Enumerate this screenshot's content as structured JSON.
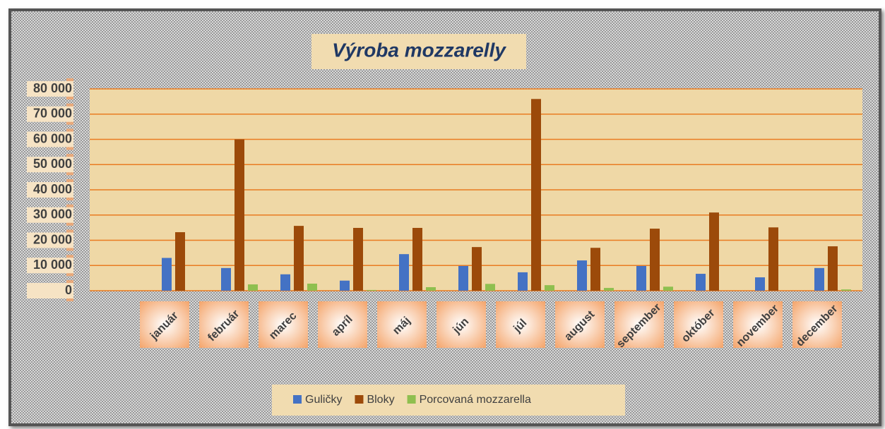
{
  "chart_data": {
    "type": "bar",
    "title": "Výroba mozzarelly",
    "categories": [
      "január",
      "február",
      "marec",
      "apríl",
      "máj",
      "jún",
      "júl",
      "august",
      "september",
      "október",
      "november",
      "december"
    ],
    "series": [
      {
        "name": "Guličky",
        "color": "#4472c4",
        "values": [
          13000,
          9000,
          6500,
          4000,
          14500,
          9800,
          7300,
          12000,
          9800,
          6700,
          5300,
          9000
        ]
      },
      {
        "name": "Bloky",
        "color": "#9c4a0a",
        "values": [
          23200,
          60000,
          25700,
          24900,
          24900,
          17300,
          76000,
          17000,
          24600,
          31000,
          25100,
          17600
        ]
      },
      {
        "name": "Porcovaná mozzarella",
        "color": "#8fbf4f",
        "values": [
          0,
          2500,
          2800,
          300,
          1400,
          2700,
          2200,
          1100,
          1600,
          0,
          0,
          500
        ]
      }
    ],
    "ylim": [
      0,
      80000
    ],
    "yticks": [
      0,
      {
        "value": 10000,
        "label": "10 000"
      },
      {
        "value": 20000,
        "label": "20 000"
      },
      {
        "value": 30000,
        "label": "30 000"
      },
      {
        "value": 40000,
        "label": "40 000"
      },
      {
        "value": 50000,
        "label": "50 000"
      },
      {
        "value": 60000,
        "label": "60 000"
      },
      {
        "value": 70000,
        "label": "70 000"
      },
      {
        "value": 80000,
        "label": "80 000"
      }
    ],
    "grid": true,
    "legend": "bottom"
  }
}
